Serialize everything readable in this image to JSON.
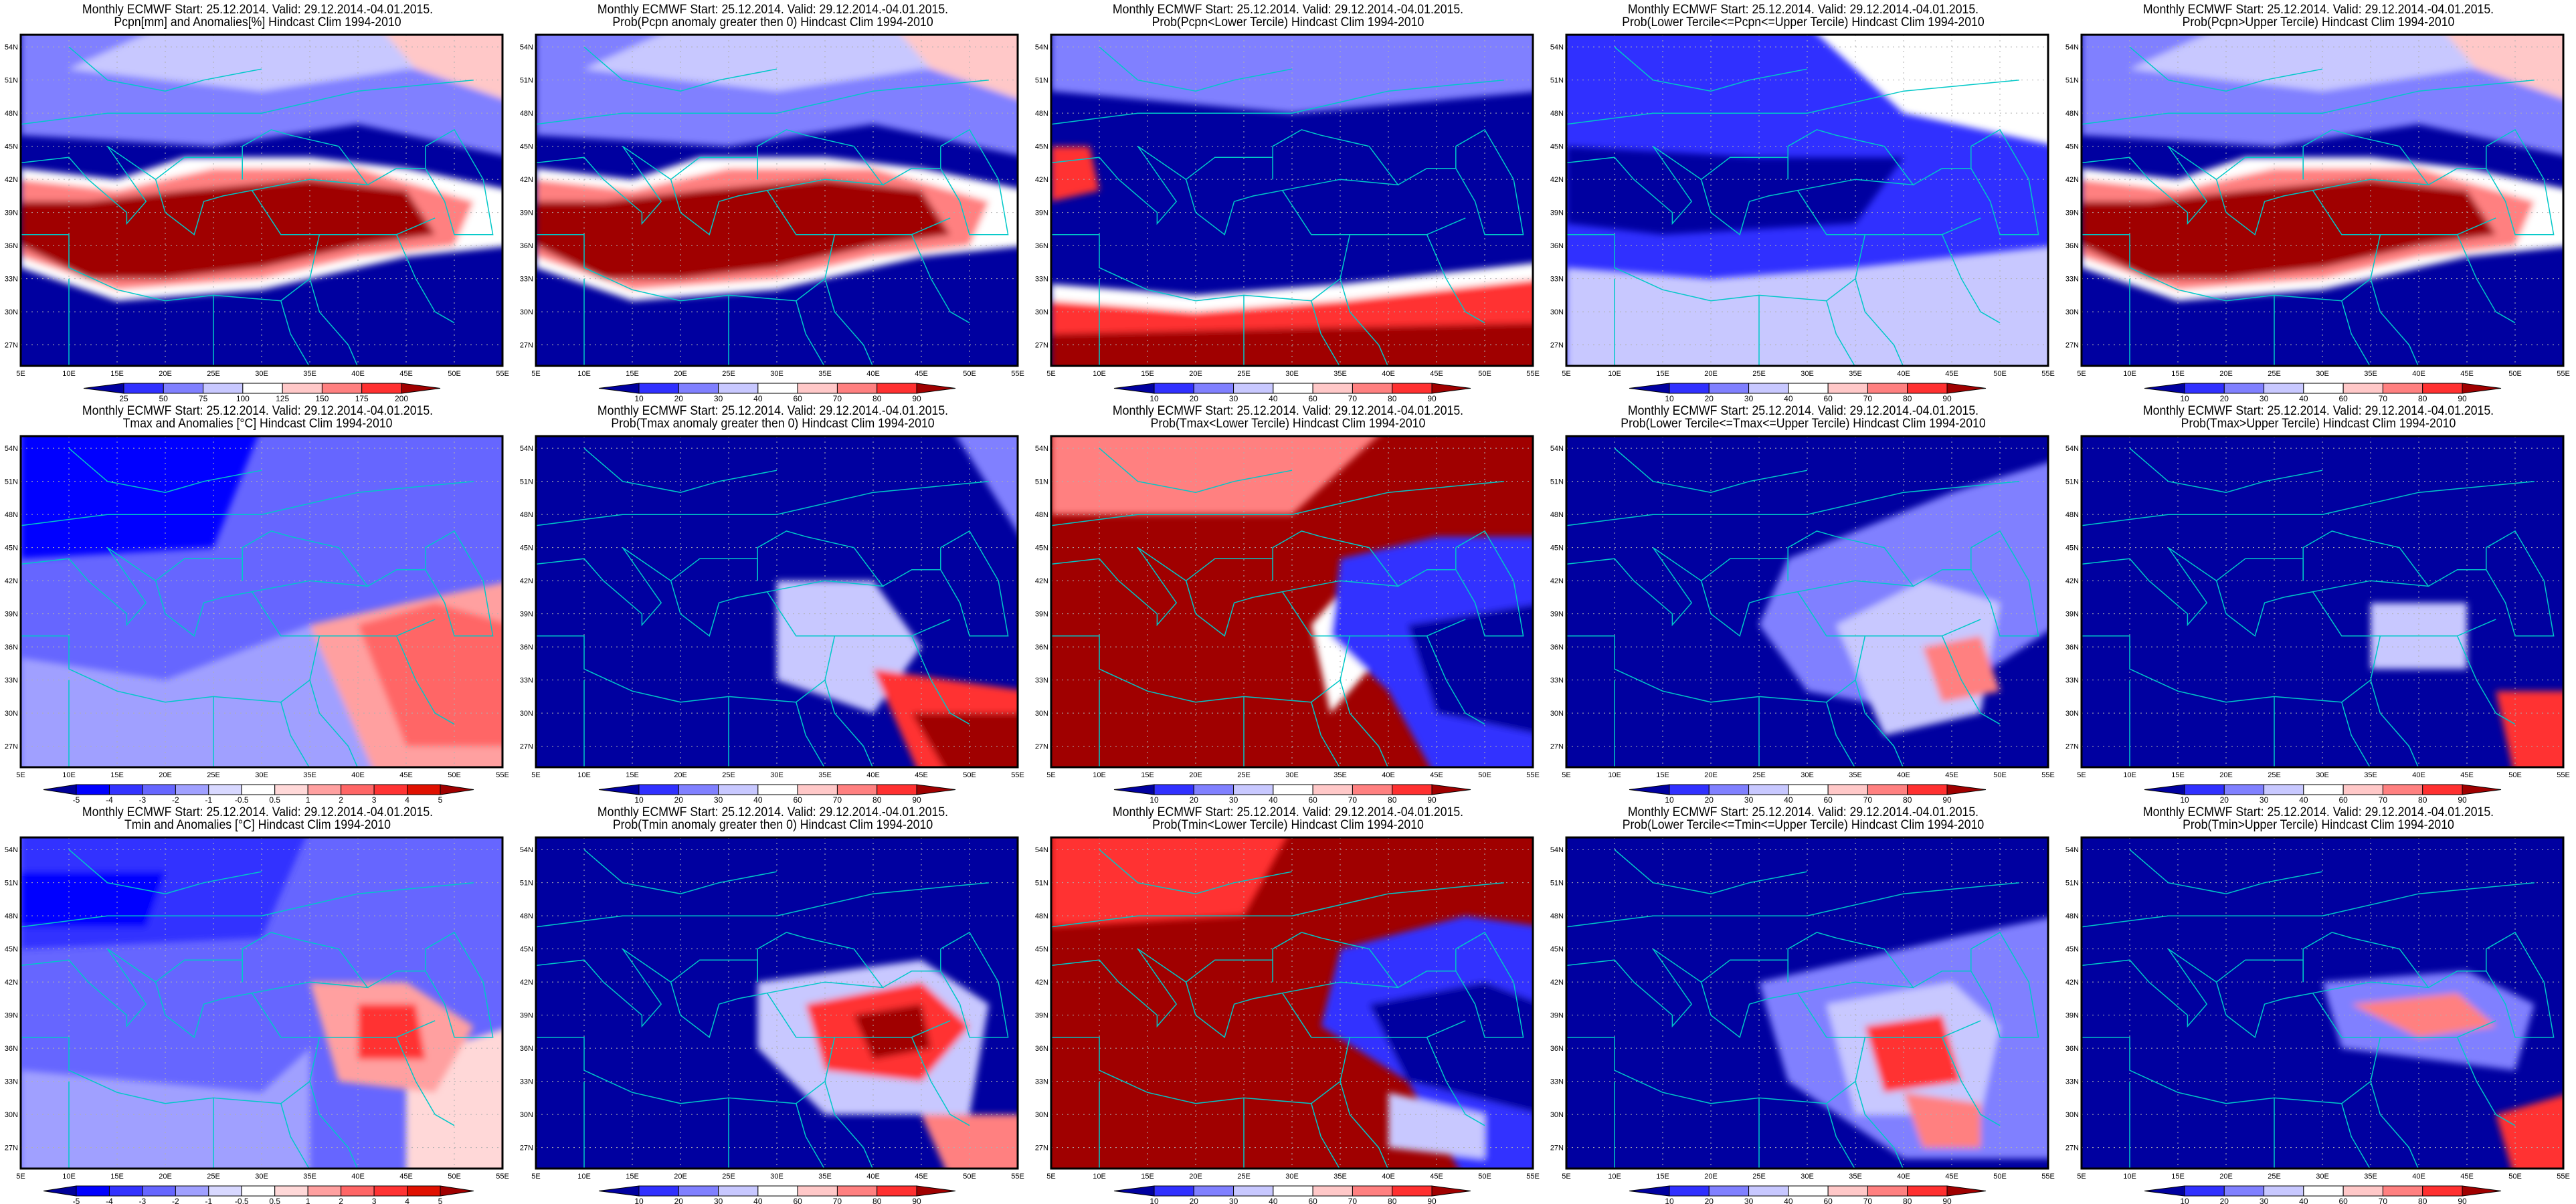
{
  "common_title": "Monthly ECMWF Start: 25.12.2014. Valid: 29.12.2014.-04.01.2015.",
  "panels": [
    {
      "title": "Pcpn[mm] and Anomalies[%] Hindcast Clim 1994-2010",
      "colorbar": "pcpn"
    },
    {
      "title": "Prob(Pcpn anomaly greater then 0) Hindcast Clim 1994-2010",
      "colorbar": "prob"
    },
    {
      "title": "Prob(Pcpn<Lower Tercile) Hindcast Clim 1994-2010",
      "colorbar": "prob"
    },
    {
      "title": "Prob(Lower Tercile<=Pcpn<=Upper Tercile) Hindcast Clim 1994-2010",
      "colorbar": "prob"
    },
    {
      "title": "Prob(Pcpn>Upper Tercile) Hindcast Clim 1994-2010",
      "colorbar": "prob"
    },
    {
      "title": "Tmax and Anomalies [°C] Hindcast Clim 1994-2010",
      "colorbar": "temp"
    },
    {
      "title": "Prob(Tmax anomaly greater then 0) Hindcast Clim 1994-2010",
      "colorbar": "prob"
    },
    {
      "title": "Prob(Tmax<Lower Tercile) Hindcast Clim 1994-2010",
      "colorbar": "prob"
    },
    {
      "title": "Prob(Lower Tercile<=Tmax<=Upper Tercile) Hindcast Clim 1994-2010",
      "colorbar": "prob"
    },
    {
      "title": "Prob(Tmax>Upper Tercile) Hindcast Clim 1994-2010",
      "colorbar": "prob"
    },
    {
      "title": "Tmin and Anomalies [°C] Hindcast Clim 1994-2010",
      "colorbar": "temp"
    },
    {
      "title": "Prob(Tmin anomaly greater then 0) Hindcast Clim 1994-2010",
      "colorbar": "prob"
    },
    {
      "title": "Prob(Tmin<Lower Tercile) Hindcast Clim 1994-2010",
      "colorbar": "prob"
    },
    {
      "title": "Prob(Lower Tercile<=Tmin<=Upper Tercile) Hindcast Clim 1994-2010",
      "colorbar": "prob"
    },
    {
      "title": "Prob(Tmin>Upper Tercile) Hindcast Clim 1994-2010",
      "colorbar": "prob"
    }
  ],
  "colorbars": {
    "pcpn": {
      "labels": [
        "25",
        "50",
        "75",
        "100",
        "125",
        "150",
        "175",
        "200"
      ],
      "colors": [
        "#3030ff",
        "#8080ff",
        "#c8c8ff",
        "#ffffff",
        "#ffc8c8",
        "#ff8080",
        "#ff3030"
      ],
      "low": "#0000a0",
      "high": "#a00000"
    },
    "prob": {
      "labels": [
        "10",
        "20",
        "30",
        "40",
        "60",
        "70",
        "80",
        "90"
      ],
      "colors": [
        "#3030ff",
        "#8080ff",
        "#c8c8ff",
        "#ffffff",
        "#ffc8c8",
        "#ff8080",
        "#ff3030"
      ],
      "low": "#0000a0",
      "high": "#a00000"
    },
    "temp": {
      "labels": [
        "-5",
        "-4",
        "-3",
        "-2",
        "-1",
        "-0.5",
        "0.5",
        "1",
        "2",
        "3",
        "4",
        "5"
      ],
      "colors": [
        "#0000ff",
        "#3333ff",
        "#6666ff",
        "#a0a0ff",
        "#d8d8ff",
        "#ffffff",
        "#ffd8d8",
        "#ffa0a0",
        "#ff6666",
        "#ff3333",
        "#e01000"
      ],
      "low": "#000099",
      "high": "#a00000"
    }
  },
  "axes": {
    "lat_labels": [
      "54N",
      "51N",
      "48N",
      "45N",
      "42N",
      "39N",
      "36N",
      "33N",
      "30N",
      "27N"
    ],
    "lat_values": [
      54,
      51,
      48,
      45,
      42,
      39,
      36,
      33,
      30,
      27
    ],
    "lon_labels": [
      "5E",
      "10E",
      "15E",
      "20E",
      "25E",
      "30E",
      "35E",
      "40E",
      "45E",
      "50E",
      "55E"
    ],
    "lon_values": [
      5,
      10,
      15,
      20,
      25,
      30,
      35,
      40,
      45,
      50,
      55
    ]
  },
  "colors": {
    "coastline": "#00c8c8",
    "grid": "#b0b0b0"
  }
}
